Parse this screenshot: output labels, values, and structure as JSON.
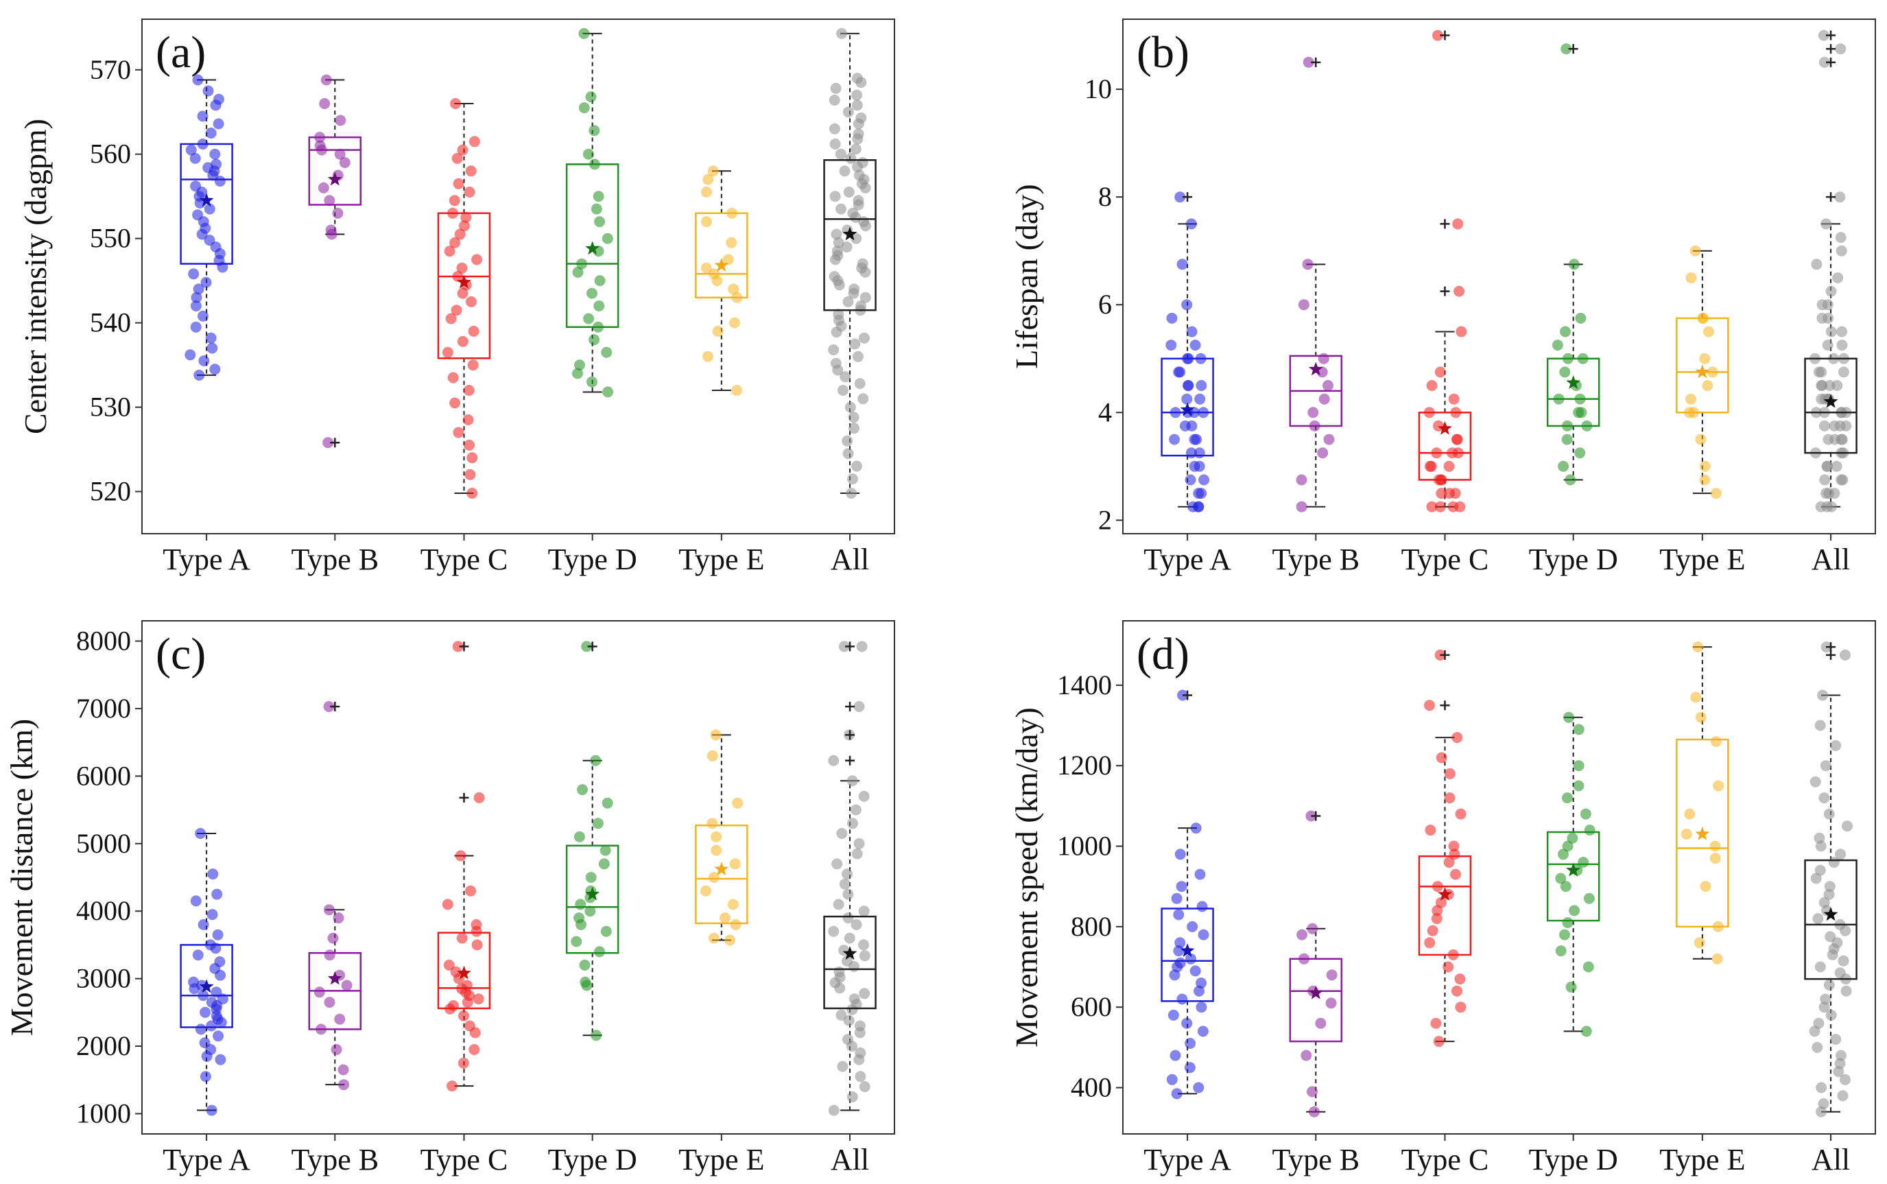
{
  "chart_data": [
    {
      "panel": "(a)",
      "type": "box",
      "ylabel": "Center intensity (dagpm)",
      "ylim": [
        515,
        576
      ],
      "yticks": [
        520,
        530,
        540,
        550,
        560,
        570
      ],
      "yticklabels": [
        "520",
        "530",
        "540",
        "550",
        "560",
        "570"
      ],
      "categories": [
        "Type A",
        "Type B",
        "Type C",
        "Type D",
        "Type E",
        "All"
      ],
      "boxes": [
        {
          "q1": 547.0,
          "median": 557.0,
          "q3": 561.2,
          "mean": 554.5,
          "whisker_low": 533.8,
          "whisker_high": 568.8,
          "outliers": []
        },
        {
          "q1": 554.0,
          "median": 560.5,
          "q3": 562.0,
          "mean": 557.0,
          "whisker_low": 550.5,
          "whisker_high": 568.8,
          "outliers": [
            525.8
          ]
        },
        {
          "q1": 535.8,
          "median": 545.5,
          "q3": 553.0,
          "mean": 544.8,
          "whisker_low": 519.8,
          "whisker_high": 566.0,
          "outliers": []
        },
        {
          "q1": 539.5,
          "median": 547.0,
          "q3": 558.8,
          "mean": 548.8,
          "whisker_low": 531.8,
          "whisker_high": 574.3,
          "outliers": []
        },
        {
          "q1": 543.0,
          "median": 545.8,
          "q3": 553.0,
          "mean": 546.8,
          "whisker_low": 532.0,
          "whisker_high": 558.0,
          "outliers": []
        },
        {
          "q1": 541.5,
          "median": 552.3,
          "q3": 559.3,
          "mean": 550.5,
          "whisker_low": 519.8,
          "whisker_high": 574.3,
          "outliers": []
        }
      ],
      "points": [
        [
          568.8,
          567.5,
          566.5,
          565.8,
          564.5,
          563.6,
          562.5,
          561.2,
          560.5,
          560.0,
          559.5,
          558.8,
          558.4,
          558.0,
          557.5,
          556.8,
          556.2,
          555.5,
          555.0,
          554.2,
          553.5,
          552.8,
          552.0,
          551.2,
          550.5,
          549.8,
          549.0,
          548.2,
          547.4,
          546.6,
          545.8,
          544.8,
          544.0,
          543.0,
          542.0,
          540.8,
          539.5,
          538.2,
          537.0,
          536.2,
          535.5,
          534.5,
          533.8
        ],
        [
          568.8,
          566.0,
          564.0,
          562.0,
          561.0,
          560.5,
          560.0,
          559.0,
          557.5,
          556.0,
          554.5,
          553.0,
          551.0,
          550.5,
          525.8
        ],
        [
          566.0,
          561.5,
          560.5,
          559.5,
          558.0,
          556.5,
          555.5,
          554.5,
          553.0,
          552.5,
          551.5,
          550.5,
          549.5,
          548.5,
          547.5,
          546.5,
          545.5,
          544.5,
          543.5,
          542.5,
          541.5,
          540.5,
          539.0,
          537.8,
          536.5,
          535.0,
          533.5,
          532.0,
          530.5,
          528.5,
          527.0,
          525.5,
          524.0,
          522.0,
          519.8
        ],
        [
          574.3,
          566.8,
          565.5,
          562.8,
          560.0,
          558.8,
          555.0,
          553.5,
          552.0,
          550.0,
          548.5,
          547.0,
          546.0,
          545.0,
          543.5,
          542.0,
          540.5,
          539.5,
          538.0,
          536.5,
          535.0,
          534.0,
          533.0,
          531.8
        ],
        [
          558.0,
          557.0,
          555.5,
          553.0,
          552.0,
          549.5,
          547.5,
          546.5,
          545.8,
          545.0,
          544.0,
          543.0,
          540.0,
          539.0,
          536.0,
          532.0
        ],
        [
          574.3,
          569.0,
          568.5,
          567.8,
          567.0,
          566.4,
          565.8,
          565.0,
          564.3,
          563.6,
          563.0,
          562.4,
          561.8,
          561.2,
          560.6,
          560.0,
          559.5,
          559.0,
          558.5,
          558.0,
          557.5,
          557.0,
          556.5,
          556.0,
          555.5,
          555.0,
          554.5,
          554.0,
          553.5,
          553.0,
          552.5,
          552.0,
          551.5,
          551.0,
          550.5,
          550.0,
          549.5,
          549.0,
          548.5,
          548.0,
          547.5,
          547.0,
          546.5,
          546.0,
          545.5,
          545.0,
          544.5,
          544.0,
          543.5,
          543.0,
          542.5,
          542.0,
          541.5,
          541.0,
          540.3,
          539.6,
          538.9,
          538.2,
          537.5,
          536.8,
          536.0,
          535.2,
          534.4,
          533.6,
          532.8,
          532.0,
          531.0,
          530.0,
          528.8,
          527.5,
          526.0,
          524.5,
          523.0,
          521.5,
          519.8
        ]
      ]
    },
    {
      "panel": "(b)",
      "type": "box",
      "ylabel": "Lifespan (day)",
      "ylim": [
        1.75,
        11.3
      ],
      "yticks": [
        2,
        4,
        6,
        8,
        10
      ],
      "yticklabels": [
        "2",
        "4",
        "6",
        "8",
        "10"
      ],
      "categories": [
        "Type A",
        "Type B",
        "Type C",
        "Type D",
        "Type E",
        "All"
      ],
      "boxes": [
        {
          "q1": 3.2,
          "median": 4.0,
          "q3": 5.0,
          "mean": 4.05,
          "whisker_low": 2.25,
          "whisker_high": 7.5,
          "outliers": [
            8.0
          ]
        },
        {
          "q1": 3.75,
          "median": 4.4,
          "q3": 5.05,
          "mean": 4.8,
          "whisker_low": 2.25,
          "whisker_high": 6.75,
          "outliers": [
            10.5
          ]
        },
        {
          "q1": 2.75,
          "median": 3.25,
          "q3": 4.0,
          "mean": 3.7,
          "whisker_low": 2.25,
          "whisker_high": 5.5,
          "outliers": [
            6.25,
            7.5,
            11.0
          ]
        },
        {
          "q1": 3.75,
          "median": 4.25,
          "q3": 5.0,
          "mean": 4.55,
          "whisker_low": 2.75,
          "whisker_high": 6.75,
          "outliers": [
            10.75
          ]
        },
        {
          "q1": 4.0,
          "median": 4.75,
          "q3": 5.75,
          "mean": 4.75,
          "whisker_low": 2.5,
          "whisker_high": 7.0,
          "outliers": []
        },
        {
          "q1": 3.25,
          "median": 4.0,
          "q3": 5.0,
          "mean": 4.2,
          "whisker_low": 2.25,
          "whisker_high": 7.5,
          "outliers": [
            8.0,
            10.5,
            10.75,
            11.0
          ]
        }
      ],
      "points": [
        [
          8.0,
          7.5,
          6.75,
          6.0,
          5.75,
          5.5,
          5.25,
          5.25,
          5.0,
          5.0,
          5.0,
          4.75,
          4.75,
          4.5,
          4.5,
          4.5,
          4.25,
          4.25,
          4.0,
          4.0,
          4.0,
          4.0,
          3.75,
          3.75,
          3.5,
          3.5,
          3.5,
          3.25,
          3.25,
          3.0,
          3.0,
          2.75,
          2.75,
          2.5,
          2.5,
          2.25,
          2.25,
          2.25
        ],
        [
          10.5,
          6.75,
          6.0,
          5.0,
          4.75,
          4.5,
          4.25,
          4.0,
          3.75,
          3.5,
          3.25,
          2.75,
          2.25
        ],
        [
          11.0,
          7.5,
          6.25,
          5.5,
          4.75,
          4.5,
          4.25,
          4.0,
          4.0,
          3.75,
          3.5,
          3.5,
          3.25,
          3.25,
          3.25,
          3.0,
          3.0,
          3.0,
          2.75,
          2.75,
          2.75,
          2.5,
          2.5,
          2.5,
          2.25,
          2.25,
          2.25,
          2.25
        ],
        [
          10.75,
          6.75,
          5.75,
          5.5,
          5.25,
          5.0,
          5.0,
          4.75,
          4.5,
          4.25,
          4.25,
          4.0,
          4.0,
          3.75,
          3.75,
          3.5,
          3.25,
          3.0,
          2.75
        ],
        [
          7.0,
          6.5,
          5.75,
          5.75,
          5.5,
          5.0,
          4.75,
          4.5,
          4.25,
          4.0,
          4.0,
          3.5,
          3.0,
          2.75,
          2.5
        ],
        [
          11.0,
          10.75,
          10.5,
          8.0,
          7.5,
          7.25,
          7.0,
          6.75,
          6.5,
          6.25,
          6.0,
          6.0,
          5.75,
          5.75,
          5.5,
          5.5,
          5.25,
          5.25,
          5.0,
          5.0,
          5.0,
          4.75,
          4.75,
          4.75,
          4.5,
          4.5,
          4.5,
          4.5,
          4.25,
          4.25,
          4.25,
          4.25,
          4.0,
          4.0,
          4.0,
          4.0,
          4.0,
          3.75,
          3.75,
          3.75,
          3.75,
          3.5,
          3.5,
          3.5,
          3.5,
          3.25,
          3.25,
          3.25,
          3.0,
          3.0,
          3.0,
          2.75,
          2.75,
          2.75,
          2.5,
          2.5,
          2.5,
          2.25,
          2.25,
          2.25
        ]
      ]
    },
    {
      "panel": "(c)",
      "type": "box",
      "ylabel": "Movement distance (km)",
      "ylim": [
        700,
        8300
      ],
      "yticks": [
        1000,
        2000,
        3000,
        4000,
        5000,
        6000,
        7000,
        8000
      ],
      "yticklabels": [
        "1000",
        "2000",
        "3000",
        "4000",
        "5000",
        "6000",
        "7000",
        "8000"
      ],
      "categories": [
        "Type A",
        "Type B",
        "Type C",
        "Type D",
        "Type E",
        "All"
      ],
      "boxes": [
        {
          "q1": 2280,
          "median": 2750,
          "q3": 3500,
          "mean": 2880,
          "whisker_low": 1050,
          "whisker_high": 5150,
          "outliers": []
        },
        {
          "q1": 2250,
          "median": 2820,
          "q3": 3380,
          "mean": 3000,
          "whisker_low": 1430,
          "whisker_high": 4020,
          "outliers": [
            7030
          ]
        },
        {
          "q1": 2560,
          "median": 2860,
          "q3": 3680,
          "mean": 3080,
          "whisker_low": 1410,
          "whisker_high": 4820,
          "outliers": [
            5680,
            7920
          ]
        },
        {
          "q1": 3380,
          "median": 4060,
          "q3": 4970,
          "mean": 4250,
          "whisker_low": 2160,
          "whisker_high": 6230,
          "outliers": [
            7920
          ]
        },
        {
          "q1": 3820,
          "median": 4480,
          "q3": 5270,
          "mean": 4620,
          "whisker_low": 3570,
          "whisker_high": 6610,
          "outliers": []
        },
        {
          "q1": 2560,
          "median": 3140,
          "q3": 3920,
          "mean": 3370,
          "whisker_low": 1050,
          "whisker_high": 5930,
          "outliers": [
            6230,
            6610,
            7030,
            7920
          ]
        }
      ],
      "points": [
        [
          5150,
          4550,
          4250,
          4150,
          3950,
          3800,
          3650,
          3500,
          3450,
          3350,
          3250,
          3150,
          3050,
          2950,
          2900,
          2850,
          2800,
          2750,
          2700,
          2650,
          2600,
          2550,
          2500,
          2450,
          2400,
          2350,
          2300,
          2250,
          2150,
          2050,
          1950,
          1850,
          1800,
          1550,
          1050
        ],
        [
          7030,
          4020,
          3900,
          3600,
          3350,
          3050,
          2900,
          2800,
          2650,
          2400,
          2250,
          1950,
          1650,
          1430
        ],
        [
          7920,
          5680,
          4820,
          4300,
          4100,
          3800,
          3700,
          3600,
          3500,
          3200,
          3100,
          3000,
          2900,
          2850,
          2800,
          2750,
          2700,
          2650,
          2600,
          2550,
          2450,
          2300,
          2200,
          1950,
          1750,
          1410
        ],
        [
          7920,
          6230,
          5800,
          5600,
          5300,
          5100,
          4900,
          4700,
          4500,
          4300,
          4200,
          4100,
          4000,
          3900,
          3800,
          3700,
          3550,
          3400,
          3200,
          2950,
          2900,
          2160
        ],
        [
          6610,
          6300,
          5600,
          5300,
          5100,
          4900,
          4700,
          4500,
          4300,
          4100,
          3900,
          3800,
          3600,
          3570
        ],
        [
          7920,
          7920,
          7030,
          6610,
          6230,
          5930,
          5700,
          5500,
          5300,
          5150,
          5000,
          4850,
          4700,
          4550,
          4400,
          4250,
          4100,
          4000,
          3900,
          3800,
          3700,
          3600,
          3500,
          3420,
          3340,
          3260,
          3180,
          3100,
          3020,
          2940,
          2860,
          2780,
          2700,
          2620,
          2540,
          2460,
          2380,
          2300,
          2200,
          2100,
          2000,
          1900,
          1800,
          1700,
          1550,
          1400,
          1250,
          1050
        ]
      ]
    },
    {
      "panel": "(d)",
      "type": "box",
      "ylabel": "Movement speed (km/day)",
      "ylim": [
        285,
        1560
      ],
      "yticks": [
        400,
        600,
        800,
        1000,
        1200,
        1400
      ],
      "yticklabels": [
        "400",
        "600",
        "800",
        "1000",
        "1200",
        "1400"
      ],
      "categories": [
        "Type A",
        "Type B",
        "Type C",
        "Type D",
        "Type E",
        "All"
      ],
      "boxes": [
        {
          "q1": 615,
          "median": 715,
          "q3": 845,
          "mean": 740,
          "whisker_low": 385,
          "whisker_high": 1045,
          "outliers": [
            1375
          ]
        },
        {
          "q1": 515,
          "median": 640,
          "q3": 720,
          "mean": 635,
          "whisker_low": 340,
          "whisker_high": 795,
          "outliers": [
            1075
          ]
        },
        {
          "q1": 730,
          "median": 900,
          "q3": 975,
          "mean": 880,
          "whisker_low": 515,
          "whisker_high": 1270,
          "outliers": [
            1350,
            1475
          ]
        },
        {
          "q1": 815,
          "median": 955,
          "q3": 1035,
          "mean": 940,
          "whisker_low": 540,
          "whisker_high": 1320,
          "outliers": []
        },
        {
          "q1": 800,
          "median": 995,
          "q3": 1265,
          "mean": 1030,
          "whisker_low": 720,
          "whisker_high": 1495,
          "outliers": []
        },
        {
          "q1": 670,
          "median": 805,
          "q3": 965,
          "mean": 830,
          "whisker_low": 340,
          "whisker_high": 1375,
          "outliers": [
            1475,
            1495
          ]
        }
      ],
      "points": [
        [
          1375,
          1045,
          980,
          930,
          900,
          870,
          850,
          830,
          800,
          780,
          760,
          740,
          720,
          710,
          700,
          690,
          680,
          660,
          640,
          620,
          600,
          580,
          560,
          540,
          510,
          480,
          450,
          420,
          400,
          385
        ],
        [
          1075,
          795,
          780,
          720,
          680,
          640,
          610,
          560,
          480,
          390,
          340
        ],
        [
          1475,
          1350,
          1270,
          1220,
          1180,
          1120,
          1080,
          1040,
          1000,
          980,
          960,
          930,
          900,
          880,
          860,
          840,
          820,
          790,
          760,
          730,
          700,
          670,
          640,
          600,
          560,
          515
        ],
        [
          1320,
          1290,
          1200,
          1150,
          1120,
          1080,
          1040,
          1020,
          1000,
          980,
          960,
          940,
          920,
          900,
          870,
          840,
          810,
          780,
          740,
          700,
          650,
          540
        ],
        [
          1495,
          1370,
          1320,
          1260,
          1150,
          1080,
          1030,
          1000,
          970,
          900,
          800,
          760,
          720
        ],
        [
          1495,
          1475,
          1375,
          1300,
          1250,
          1200,
          1160,
          1120,
          1080,
          1050,
          1020,
          1000,
          980,
          960,
          940,
          920,
          900,
          880,
          860,
          840,
          820,
          805,
          790,
          775,
          760,
          745,
          730,
          715,
          700,
          685,
          670,
          655,
          640,
          620,
          600,
          580,
          560,
          540,
          520,
          500,
          480,
          460,
          440,
          420,
          400,
          380,
          360,
          340
        ]
      ]
    }
  ],
  "colors": {
    "Type A": "#1f1fe0",
    "Type B": "#8a1f9c",
    "Type C": "#ee1c1c",
    "Type D": "#1f8f1f",
    "Type E": "#f5b21d",
    "All": "#8c8c8c",
    "All_box": "#222222",
    "mean_marker": {
      "Type A": "#1414b8",
      "Type B": "#6a0d7a",
      "Type C": "#c81010",
      "Type D": "#127512",
      "Type E": "#f0a818",
      "All": "#111111"
    }
  }
}
